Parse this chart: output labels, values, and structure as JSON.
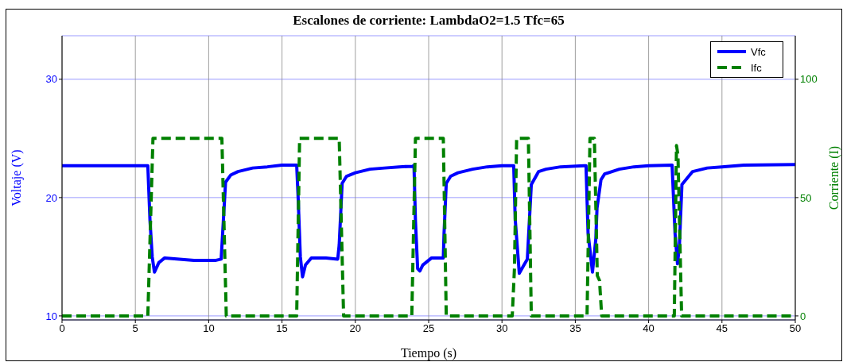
{
  "chart_data": {
    "type": "line",
    "title": "Escalones de corriente: LambdaO2=1.5 Tfc=65",
    "xlabel": "Tiempo (s)",
    "ylabel": "Voltaje (V)",
    "y2label": "Corriente (I)",
    "xlim": [
      0,
      50
    ],
    "xticks": [
      0,
      5,
      10,
      15,
      20,
      25,
      30,
      35,
      40,
      45,
      50
    ],
    "ylim": [
      9.66,
      33.68
    ],
    "yticks": [
      10,
      20,
      30
    ],
    "y2lim": [
      -1.7,
      118.4
    ],
    "y2ticks": [
      0,
      50,
      100
    ],
    "grid": true,
    "legend": "top right",
    "series": [
      {
        "name": "Vfc",
        "color": "#0000ff",
        "line_style": "solid",
        "x": [
          0,
          5.85,
          6.0,
          6.15,
          6.3,
          6.45,
          6.6,
          7.0,
          8,
          9,
          10.5,
          10.85,
          11.0,
          11.15,
          11.5,
          12,
          13,
          14,
          15,
          16.0,
          16.1,
          16.25,
          16.4,
          16.6,
          17,
          18,
          18.8,
          18.9,
          19.1,
          19.4,
          20,
          21,
          22,
          23,
          23.9,
          24.0,
          24.1,
          24.25,
          24.4,
          24.6,
          25,
          25.2,
          26.0,
          26.05,
          26.2,
          26.5,
          27,
          28,
          29,
          30,
          30.8,
          30.9,
          31.18,
          31.5,
          31.73,
          32.0,
          32.5,
          33,
          34,
          35.6,
          35.73,
          35.87,
          36.17,
          36.4,
          36.48,
          36.75,
          37,
          38,
          39,
          40,
          41.6,
          41.8,
          41.97,
          42.1,
          42.27,
          43,
          44,
          45,
          46.5,
          50
        ],
        "values": [
          22.7,
          22.7,
          18,
          15,
          13.7,
          14.1,
          14.5,
          14.9,
          14.8,
          14.7,
          14.7,
          14.8,
          18,
          21.3,
          21.9,
          22.2,
          22.5,
          22.6,
          22.75,
          22.75,
          20,
          15,
          13.3,
          14.3,
          14.9,
          14.9,
          14.8,
          16,
          21.2,
          21.8,
          22.1,
          22.4,
          22.5,
          22.6,
          22.65,
          22.7,
          18,
          14,
          13.8,
          14.3,
          14.7,
          14.9,
          14.9,
          17,
          21.2,
          21.8,
          22.1,
          22.4,
          22.6,
          22.7,
          22.7,
          18.2,
          13.6,
          14.3,
          14.8,
          21.1,
          22.2,
          22.4,
          22.6,
          22.7,
          22.7,
          17,
          13.7,
          16.5,
          19.1,
          21.5,
          22.0,
          22.4,
          22.6,
          22.7,
          22.75,
          17,
          14.4,
          16,
          21.1,
          22.2,
          22.5,
          22.6,
          22.75,
          22.8
        ]
      },
      {
        "name": "Ifc",
        "color": "#008000",
        "line_style": "dashed",
        "axis": "y2",
        "x": [
          0,
          5.85,
          6.2,
          10.9,
          11.2,
          16.0,
          16.2,
          18.9,
          19.2,
          23.85,
          24.1,
          26.0,
          26.2,
          30.7,
          30.85,
          31.0,
          31.8,
          32.0,
          35.8,
          36.0,
          36.3,
          36.5,
          36.65,
          36.8,
          41.75,
          41.9,
          42.0,
          42.25,
          50
        ],
        "values": [
          0,
          0,
          75,
          75,
          0,
          0,
          75,
          75,
          0,
          0,
          75,
          75,
          0,
          0,
          20,
          75,
          75,
          0,
          0,
          75,
          75,
          17,
          15,
          0,
          0,
          72,
          68,
          0,
          0
        ]
      }
    ]
  }
}
